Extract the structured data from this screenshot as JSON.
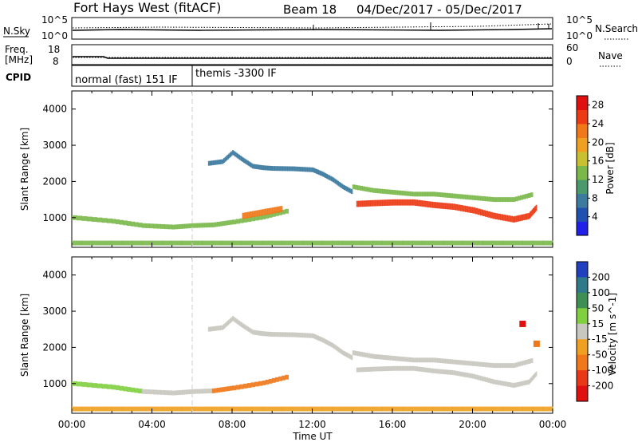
{
  "header": {
    "radar": "Fort Hays West (fitACF)",
    "beam": "Beam 18",
    "dates": "04/Dec/2017 - 05/Dec/2017"
  },
  "chart_data": [
    {
      "type": "line",
      "labels": {
        "left": "N.Sky",
        "right": "N.Search"
      },
      "y_ticks_left": [
        "10^5",
        "10^0"
      ],
      "y_ticks_right": [
        "10^5",
        "10^0"
      ]
    },
    {
      "type": "line",
      "labels": {
        "left_top": "Freq.",
        "left_unit": "[MHz]",
        "right": "Nave"
      },
      "y_ticks_left": [
        "18",
        "8"
      ],
      "y_ticks_right": [
        "60",
        "0"
      ]
    },
    {
      "type": "table",
      "label": "CPID",
      "segments": [
        {
          "start_hour": 0,
          "end_hour": 6.0,
          "text": "normal (fast) 151 IF"
        },
        {
          "start_hour": 6.0,
          "end_hour": 24,
          "text": "themis -3300 IF"
        }
      ]
    },
    {
      "type": "heatmap",
      "quantity": "power",
      "ylabel": "Slant Range [km]",
      "ylim": [
        180,
        4500
      ],
      "yticks": [
        1000,
        2000,
        3000,
        4000
      ],
      "xlim": [
        0,
        24
      ],
      "colorbar": {
        "label": "Power [dB]",
        "ticks": [
          4,
          8,
          12,
          16,
          20,
          24,
          28
        ],
        "range": [
          0,
          30
        ],
        "colors": [
          "#2020e8",
          "#2050b0",
          "#3c7aa0",
          "#4a9a6c",
          "#7ab84a",
          "#c8c030",
          "#f0a020",
          "#f07818",
          "#ec3a14",
          "#e01010"
        ]
      },
      "echo_bands": [
        {
          "x": [
            0,
            2,
            3.5,
            5,
            6,
            7,
            8,
            9.5,
            10.8
          ],
          "y": [
            1000,
            900,
            780,
            740,
            780,
            800,
            880,
            1020,
            1200
          ],
          "value": 14
        },
        {
          "x": [
            8.5,
            9.5,
            10.5
          ],
          "y": [
            1050,
            1150,
            1250
          ],
          "value": 22
        },
        {
          "x": [
            14.2,
            15,
            16,
            17,
            18,
            19,
            20,
            21,
            22,
            22.8,
            23.2
          ],
          "y": [
            1380,
            1400,
            1420,
            1420,
            1350,
            1300,
            1200,
            1050,
            950,
            1050,
            1300
          ],
          "value": 26
        },
        {
          "x": [
            14,
            15,
            16,
            17,
            18,
            19,
            20,
            21,
            22,
            23
          ],
          "y": [
            1850,
            1750,
            1700,
            1650,
            1650,
            1600,
            1550,
            1500,
            1500,
            1650
          ],
          "value": 12
        },
        {
          "x": [
            6.8,
            7.5,
            8,
            8.5,
            9,
            9.5,
            10,
            11,
            12,
            12.5,
            13,
            13.5,
            14
          ],
          "y": [
            2500,
            2550,
            2800,
            2600,
            2420,
            2380,
            2360,
            2350,
            2320,
            2200,
            2050,
            1850,
            1700
          ],
          "value": 8
        },
        {
          "x": [
            0,
            4,
            8,
            12,
            16,
            20,
            24
          ],
          "y": [
            300,
            300,
            300,
            300,
            300,
            300,
            300
          ],
          "value": 12
        }
      ]
    },
    {
      "type": "heatmap",
      "quantity": "velocity",
      "ylabel": "Slant Range [km]",
      "xlabel": "Time UT",
      "ylim": [
        180,
        4500
      ],
      "yticks": [
        1000,
        2000,
        3000,
        4000
      ],
      "xlim": [
        0,
        24
      ],
      "xticks": [
        "00:00",
        "04:00",
        "08:00",
        "12:00",
        "16:00",
        "20:00",
        "00:00"
      ],
      "colorbar": {
        "label": "Velocity [m s^-1]",
        "ticks": [
          200,
          100,
          50,
          15,
          -15,
          -50,
          -100,
          -200
        ],
        "colors": [
          "#2040c0",
          "#2f7a8a",
          "#3e8f54",
          "#7fcf3f",
          "#c8c8c0",
          "#f0a020",
          "#f07818",
          "#e83818",
          "#e01010"
        ]
      },
      "echo_bands": [
        {
          "x": [
            0,
            2,
            3.5
          ],
          "y": [
            1000,
            900,
            780
          ],
          "value": 30
        },
        {
          "x": [
            3.5,
            5,
            6,
            7
          ],
          "y": [
            780,
            740,
            780,
            800
          ],
          "value": 0
        },
        {
          "x": [
            7,
            8,
            9.5,
            10.8
          ],
          "y": [
            800,
            880,
            1020,
            1200
          ],
          "value": -70
        },
        {
          "x": [
            14.2,
            15,
            16,
            17,
            18,
            19,
            20,
            21,
            22,
            22.8,
            23.2
          ],
          "y": [
            1380,
            1400,
            1420,
            1420,
            1350,
            1300,
            1200,
            1050,
            950,
            1050,
            1300
          ],
          "value": 0
        },
        {
          "x": [
            14,
            15,
            16,
            17,
            18,
            19,
            20,
            21,
            22,
            23
          ],
          "y": [
            1850,
            1750,
            1700,
            1650,
            1650,
            1600,
            1550,
            1500,
            1500,
            1650
          ],
          "value": 5
        },
        {
          "x": [
            6.8,
            7.5,
            8,
            8.5,
            9,
            9.5,
            10,
            11,
            12,
            12.5,
            13,
            13.5,
            14
          ],
          "y": [
            2500,
            2550,
            2800,
            2600,
            2420,
            2380,
            2360,
            2350,
            2320,
            2200,
            2050,
            1850,
            1700
          ],
          "value": 0
        },
        {
          "x": [
            0,
            4,
            8,
            12,
            16,
            20,
            24
          ],
          "y": [
            300,
            300,
            300,
            300,
            300,
            300,
            300
          ],
          "value": -40
        },
        {
          "x": [
            22.5
          ],
          "y": [
            2650
          ],
          "value": -250
        },
        {
          "x": [
            23.2
          ],
          "y": [
            2100
          ],
          "value": -60
        }
      ]
    }
  ]
}
